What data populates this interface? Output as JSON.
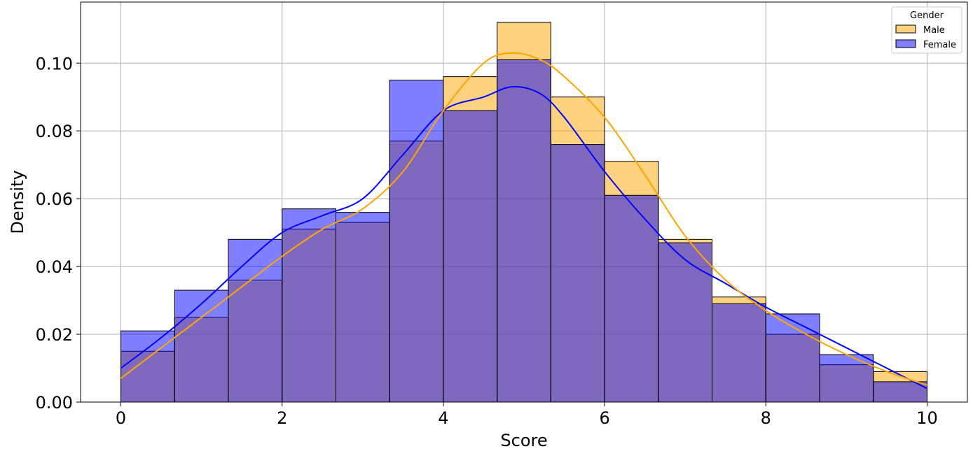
{
  "chart_data": {
    "type": "histogram",
    "xlabel": "Score",
    "ylabel": "Density",
    "xlim": [
      -0.5,
      10.5
    ],
    "ylim": [
      0,
      0.118
    ],
    "xticks": [
      0,
      2,
      4,
      6,
      8,
      10
    ],
    "yticks": [
      0.0,
      0.02,
      0.04,
      0.06,
      0.08,
      0.1
    ],
    "xtick_labels": [
      "0",
      "2",
      "4",
      "6",
      "8",
      "10"
    ],
    "ytick_labels": [
      "0.00",
      "0.02",
      "0.04",
      "0.06",
      "0.08",
      "0.10"
    ],
    "grid": true,
    "bin_edges": [
      0,
      0.667,
      1.333,
      2.0,
      2.667,
      3.333,
      4.0,
      4.667,
      5.333,
      6.0,
      6.667,
      7.333,
      8.0,
      8.667,
      9.333,
      10.0
    ],
    "legend": {
      "title": "Gender",
      "position": "top-right"
    },
    "series": [
      {
        "name": "Male",
        "color": "#ffa500",
        "values": [
          0.015,
          0.025,
          0.036,
          0.051,
          0.053,
          0.077,
          0.096,
          0.112,
          0.09,
          0.071,
          0.048,
          0.031,
          0.02,
          0.011,
          0.009
        ],
        "kde_x": [
          0,
          0.5,
          1,
          1.5,
          2,
          2.5,
          3,
          3.5,
          4,
          4.5,
          4.85,
          5.2,
          5.5,
          6,
          6.5,
          7,
          7.5,
          8,
          8.5,
          9,
          9.5,
          10
        ],
        "kde_y": [
          0.007,
          0.016,
          0.025,
          0.034,
          0.043,
          0.051,
          0.057,
          0.068,
          0.086,
          0.1,
          0.103,
          0.101,
          0.096,
          0.084,
          0.067,
          0.049,
          0.036,
          0.027,
          0.02,
          0.014,
          0.009,
          0.005
        ]
      },
      {
        "name": "Female",
        "color": "#0000ff",
        "values": [
          0.021,
          0.033,
          0.048,
          0.057,
          0.056,
          0.095,
          0.086,
          0.101,
          0.076,
          0.061,
          0.047,
          0.029,
          0.026,
          0.014,
          0.006
        ],
        "kde_x": [
          0,
          0.5,
          1,
          1.5,
          2,
          2.5,
          3,
          3.5,
          4,
          4.5,
          4.85,
          5.2,
          5.5,
          6,
          6.5,
          7,
          7.5,
          8,
          8.5,
          9,
          9.5,
          10
        ],
        "kde_y": [
          0.01,
          0.019,
          0.029,
          0.04,
          0.05,
          0.055,
          0.06,
          0.073,
          0.086,
          0.09,
          0.093,
          0.091,
          0.084,
          0.068,
          0.054,
          0.042,
          0.035,
          0.028,
          0.022,
          0.016,
          0.01,
          0.004
        ]
      }
    ]
  }
}
